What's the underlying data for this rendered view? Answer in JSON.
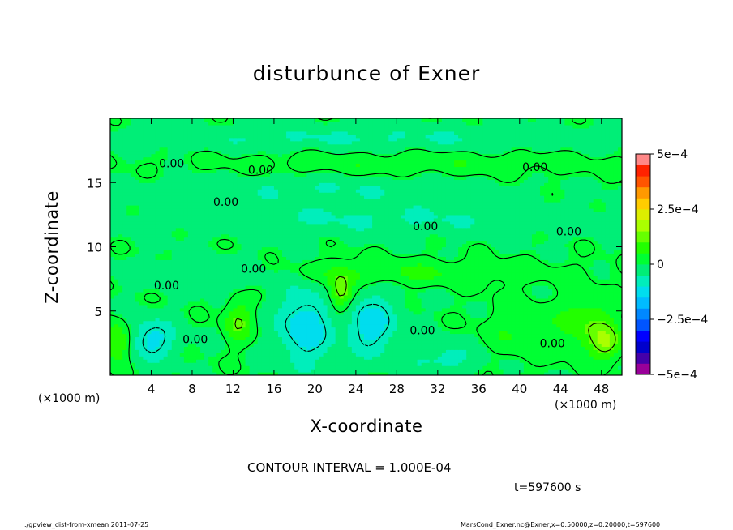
{
  "chart_data": {
    "type": "heatmap",
    "title": "disturbunce of Exner",
    "xlabel": "X-coordinate",
    "ylabel": "Z-coordinate",
    "x_unit": "(×1000 m)",
    "xlim": [
      0,
      50
    ],
    "ylim": [
      0,
      20
    ],
    "x_ticks": [
      4,
      8,
      12,
      16,
      20,
      24,
      28,
      32,
      36,
      40,
      44,
      48
    ],
    "y_ticks": [
      5,
      10,
      15
    ],
    "contour_interval_text": "CONTOUR INTERVAL = 1.000E-04",
    "contour_labels": [
      {
        "text": "0.00",
        "x": 6,
        "z": 16.5
      },
      {
        "text": "0.00",
        "x": 14.7,
        "z": 16
      },
      {
        "text": "0.00",
        "x": 11.3,
        "z": 13.5
      },
      {
        "text": "0.00",
        "x": 30.8,
        "z": 11.6
      },
      {
        "text": "0.00",
        "x": 44.8,
        "z": 11.2
      },
      {
        "text": "0.00",
        "x": 41.5,
        "z": 16.2
      },
      {
        "text": "0.00",
        "x": 14,
        "z": 8.3
      },
      {
        "text": "0.00",
        "x": 5.5,
        "z": 7
      },
      {
        "text": "0.00",
        "x": 8.3,
        "z": 2.8
      },
      {
        "text": "0.00",
        "x": 30.5,
        "z": 3.5
      },
      {
        "text": "0.00",
        "x": 43.2,
        "z": 2.5
      }
    ],
    "field_blobs": [
      {
        "x": 4,
        "z": 2.8,
        "rx": 2.4,
        "rz": 1.6,
        "v": -0.00012
      },
      {
        "x": 19,
        "z": 3.8,
        "rx": 2.6,
        "rz": 3.0,
        "v": -0.00014
      },
      {
        "x": 25.5,
        "z": 4.0,
        "rx": 2.6,
        "rz": 2.4,
        "v": -0.00013
      },
      {
        "x": 32.5,
        "z": 1.3,
        "rx": 3.5,
        "rz": 1.4,
        "v": -7e-05
      },
      {
        "x": 10.5,
        "z": 8.0,
        "rx": 8.5,
        "rz": 1.1,
        "v": -6e-05
      },
      {
        "x": 22.5,
        "z": 6.4,
        "rx": 1.2,
        "rz": 1.6,
        "v": 0.00015
      },
      {
        "x": 0.7,
        "z": 2.6,
        "rx": 1.3,
        "rz": 1.5,
        "v": 0.00013
      },
      {
        "x": 48.5,
        "z": 2.6,
        "rx": 1.4,
        "rz": 1.4,
        "v": 0.00013
      },
      {
        "x": 12.5,
        "z": 4.2,
        "rx": 1.3,
        "rz": 1.6,
        "v": 0.00011
      },
      {
        "x": 46.5,
        "z": 4.0,
        "rx": 2.5,
        "rz": 2.2,
        "v": 9e-05
      },
      {
        "x": 40,
        "z": 3.5,
        "rx": 3.5,
        "rz": 2.2,
        "v": 5e-05
      },
      {
        "x": 26,
        "z": 8.0,
        "rx": 16.0,
        "rz": 1.0,
        "v": 6e-05
      },
      {
        "x": 26,
        "z": 12.2,
        "rx": 22.0,
        "rz": 1.2,
        "v": -5.5e-05
      },
      {
        "x": 20,
        "z": 14.5,
        "rx": 16.0,
        "rz": 1.0,
        "v": -5e-05
      },
      {
        "x": 25,
        "z": 18.5,
        "rx": 26.0,
        "rz": 0.9,
        "v": -5.5e-05
      },
      {
        "x": 30,
        "z": 16.5,
        "rx": 20.0,
        "rz": 1.0,
        "v": 4e-05
      }
    ],
    "colorbar": {
      "min": -0.0005,
      "max": 0.0005,
      "levels": 20,
      "tick_labels": [
        "5e−4",
        "2.5e−4",
        "0",
        "−2.5e−4",
        "−5e−4"
      ],
      "tick_values": [
        0.0005,
        0.00025,
        0,
        -0.00025,
        -0.0005
      ],
      "colors": [
        "#990099",
        "#4400aa",
        "#0000cc",
        "#0000ff",
        "#0055ff",
        "#0088ff",
        "#00bbff",
        "#00ddee",
        "#00eebb",
        "#00ee77",
        "#00ff33",
        "#22ff00",
        "#66ff00",
        "#aaff00",
        "#ddee00",
        "#ffcc00",
        "#ff9900",
        "#ff5500",
        "#ff2200",
        "#ff8888"
      ]
    }
  },
  "labels": {
    "title": "disturbunce of Exner",
    "xlabel": "X-coordinate",
    "ylabel": "Z-coordinate",
    "xunit_left": "(×1000 m)",
    "xunit_right": "(×1000 m)",
    "contour_interval": "CONTOUR INTERVAL = 1.000E-04",
    "time": "t=597600 s",
    "footer_left": "./gpview_dist-from-xmean  2011-07-25",
    "footer_right": "MarsCond_Exner.nc@Exner,x=0:50000,z=0:20000,t=597600"
  }
}
